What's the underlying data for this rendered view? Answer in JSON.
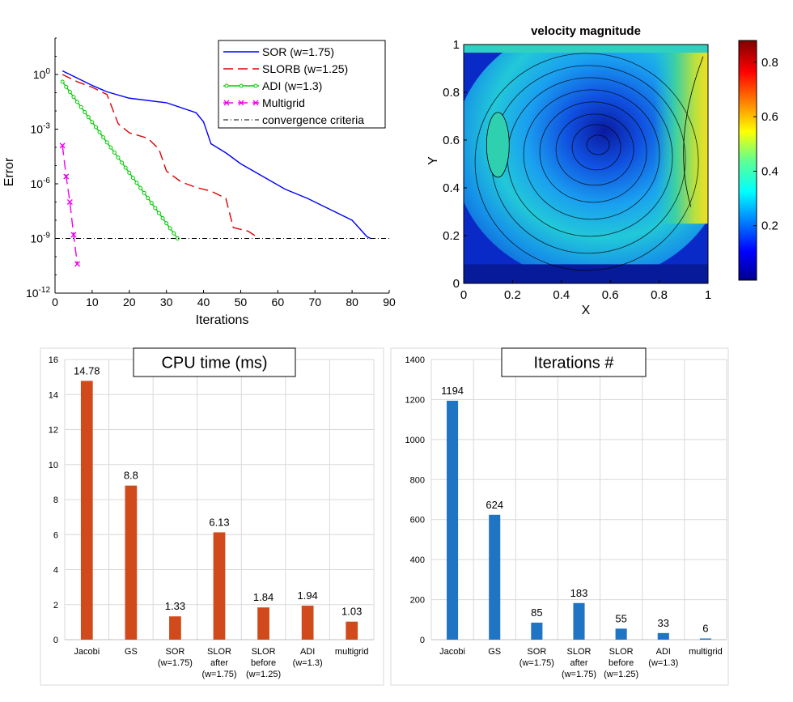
{
  "chart_data": [
    {
      "type": "line",
      "xlabel": "Iterations",
      "ylabel": "Error",
      "xlim": [
        0,
        90
      ],
      "ylim_exp": [
        -12,
        2
      ],
      "y_scale": "log",
      "x_ticks": [
        "0",
        "10",
        "20",
        "30",
        "40",
        "50",
        "60",
        "70",
        "80",
        "90"
      ],
      "y_ticks": [
        {
          "exp": 0,
          "base": "10",
          "sup": "0"
        },
        {
          "exp": -3,
          "base": "10",
          "sup": "-3"
        },
        {
          "exp": -6,
          "base": "10",
          "sup": "-6"
        },
        {
          "exp": -9,
          "base": "10",
          "sup": "-9"
        },
        {
          "exp": -12,
          "base": "10",
          "sup": "-12"
        }
      ],
      "legend_position": "top-right",
      "series": [
        {
          "name": "SOR (w=1.75)",
          "color": "#0000ff",
          "style": "solid",
          "points": [
            [
              2,
              0.2
            ],
            [
              6,
              -0.2
            ],
            [
              10,
              -0.6
            ],
            [
              14,
              -0.95
            ],
            [
              20,
              -1.3
            ],
            [
              30,
              -1.55
            ],
            [
              38,
              -2.1
            ],
            [
              40,
              -2.6
            ],
            [
              42,
              -3.8
            ],
            [
              46,
              -4.3
            ],
            [
              50,
              -4.9
            ],
            [
              56,
              -5.6
            ],
            [
              62,
              -6.3
            ],
            [
              68,
              -6.8
            ],
            [
              74,
              -7.4
            ],
            [
              80,
              -8.0
            ],
            [
              84,
              -8.9
            ],
            [
              85,
              -9.0
            ]
          ]
        },
        {
          "name": "SLORB (w=1.25)",
          "color": "#dd0000",
          "style": "dash",
          "points": [
            [
              2,
              0.0
            ],
            [
              6,
              -0.4
            ],
            [
              10,
              -0.7
            ],
            [
              14,
              -1.1
            ],
            [
              17,
              -2.7
            ],
            [
              20,
              -3.2
            ],
            [
              25,
              -3.5
            ],
            [
              28,
              -4.1
            ],
            [
              30,
              -5.3
            ],
            [
              34,
              -5.9
            ],
            [
              38,
              -6.2
            ],
            [
              42,
              -6.4
            ],
            [
              46,
              -6.8
            ],
            [
              48,
              -8.4
            ],
            [
              52,
              -8.6
            ],
            [
              55,
              -9.0
            ]
          ]
        },
        {
          "name": "ADI (w=1.3)",
          "color": "#00cc00",
          "style": "solid",
          "markers": "circle",
          "points": [
            [
              2,
              -0.4
            ],
            [
              33,
              -9.0
            ]
          ]
        },
        {
          "name": "Multigrid",
          "color": "#ee00ee",
          "style": "dash",
          "markers": "x",
          "points": [
            [
              2,
              -3.9
            ],
            [
              3,
              -5.6
            ],
            [
              4,
              -7.0
            ],
            [
              5,
              -8.8
            ],
            [
              6,
              -10.4
            ]
          ]
        },
        {
          "name": "convergence criteria",
          "color": "#000000",
          "style": "dashdot",
          "points": [
            [
              0,
              -9.0
            ],
            [
              90,
              -9.0
            ]
          ]
        }
      ]
    },
    {
      "type": "heatmap",
      "title": "velocity magnitude",
      "xlabel": "X",
      "ylabel": "Y",
      "xlim": [
        0,
        1
      ],
      "ylim": [
        0,
        1
      ],
      "x_ticks": [
        "0",
        "0.2",
        "0.4",
        "0.6",
        "0.8",
        "1"
      ],
      "y_ticks": [
        "0",
        "0.2",
        "0.4",
        "0.6",
        "0.8",
        "1"
      ],
      "colorbar_ticks": [
        "0.2",
        "0.4",
        "0.6",
        "0.8"
      ],
      "colorbar_range": [
        0,
        0.88
      ],
      "vortex_center": [
        0.55,
        0.58
      ]
    },
    {
      "type": "bar",
      "title": "CPU time (ms)",
      "categories": [
        [
          "Jacobi"
        ],
        [
          "GS"
        ],
        [
          "SOR",
          "(w=1.75)"
        ],
        [
          "SLOR",
          "after",
          "(w=1.75)"
        ],
        [
          "SLOR",
          "before",
          "(w=1.25)"
        ],
        [
          "ADI",
          "(w=1.3)"
        ],
        [
          "multigrid"
        ]
      ],
      "values": [
        14.78,
        8.8,
        1.33,
        6.13,
        1.84,
        1.94,
        1.03
      ],
      "labels": [
        "14.78",
        "8.8",
        "1.33",
        "6.13",
        "1.84",
        "1.94",
        "1.03"
      ],
      "ylim": [
        0,
        16
      ],
      "y_ticks": [
        "0",
        "2",
        "4",
        "6",
        "8",
        "10",
        "12",
        "14",
        "16"
      ],
      "color": "#d04a1c",
      "grid": true
    },
    {
      "type": "bar",
      "title": "Iterations #",
      "categories": [
        [
          "Jacobi"
        ],
        [
          "GS"
        ],
        [
          "SOR",
          "(w=1.75)"
        ],
        [
          "SLOR",
          "after",
          "(w=1.75)"
        ],
        [
          "SLOR",
          "before",
          "(w=1.25)"
        ],
        [
          "ADI",
          "(w=1.3)"
        ],
        [
          "multigrid"
        ]
      ],
      "values": [
        1194,
        624,
        85,
        183,
        55,
        33,
        6
      ],
      "labels": [
        "1194",
        "624",
        "85",
        "183",
        "55",
        "33",
        "6"
      ],
      "ylim": [
        0,
        1400
      ],
      "y_ticks": [
        "0",
        "200",
        "400",
        "600",
        "800",
        "1000",
        "1200",
        "1400"
      ],
      "color": "#1f74c4",
      "grid": true
    }
  ]
}
